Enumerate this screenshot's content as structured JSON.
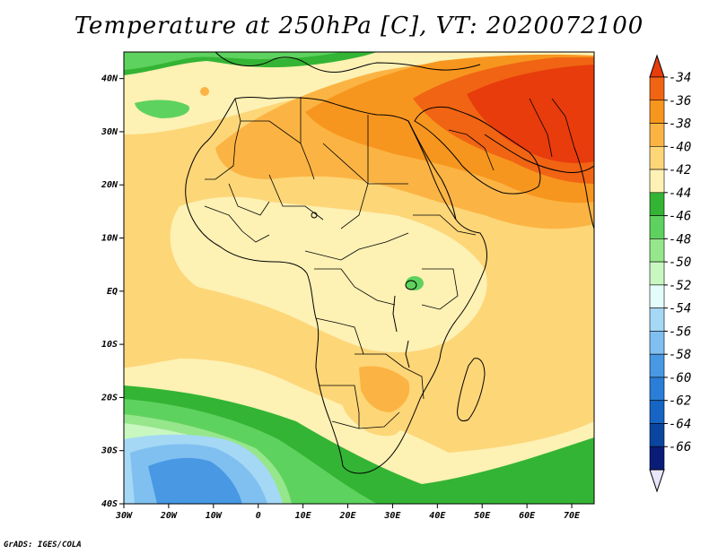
{
  "title": "Temperature at 250hPa [C], VT: 2020072100",
  "credit": "GrADS: IGES/COLA",
  "map": {
    "lon_range": [
      -30,
      75
    ],
    "lat_range": [
      -40,
      45
    ],
    "lon_ticks": [
      {
        "value": -30,
        "label": "30W"
      },
      {
        "value": -20,
        "label": "20W"
      },
      {
        "value": -10,
        "label": "10W"
      },
      {
        "value": 0,
        "label": "0"
      },
      {
        "value": 10,
        "label": "10E"
      },
      {
        "value": 20,
        "label": "20E"
      },
      {
        "value": 30,
        "label": "30E"
      },
      {
        "value": 40,
        "label": "40E"
      },
      {
        "value": 50,
        "label": "50E"
      },
      {
        "value": 60,
        "label": "60E"
      },
      {
        "value": 70,
        "label": "70E"
      }
    ],
    "lat_ticks": [
      {
        "value": 40,
        "label": "40N"
      },
      {
        "value": 30,
        "label": "30N"
      },
      {
        "value": 20,
        "label": "20N"
      },
      {
        "value": 10,
        "label": "10N"
      },
      {
        "value": 0,
        "label": "EQ"
      },
      {
        "value": -10,
        "label": "10S"
      },
      {
        "value": -20,
        "label": "20S"
      },
      {
        "value": -30,
        "label": "30S"
      },
      {
        "value": -40,
        "label": "40S"
      }
    ]
  },
  "colorbar": {
    "levels": [
      "-34",
      "-36",
      "-38",
      "-40",
      "-42",
      "-44",
      "-46",
      "-48",
      "-50",
      "-52",
      "-54",
      "-56",
      "-58",
      "-60",
      "-62",
      "-64",
      "-66"
    ],
    "colors": [
      "#e83c0c",
      "#f06414",
      "#f7961e",
      "#fbb444",
      "#fdd678",
      "#fdf1b4",
      "#34b434",
      "#5ed25e",
      "#96e68c",
      "#c8f7c0",
      "#e4fdfb",
      "#a4d8f5",
      "#80c0f0",
      "#4898e4",
      "#2a7ed8",
      "#1664c4",
      "#0a46a0",
      "#0a1c78",
      "#e8e6fa"
    ]
  }
}
